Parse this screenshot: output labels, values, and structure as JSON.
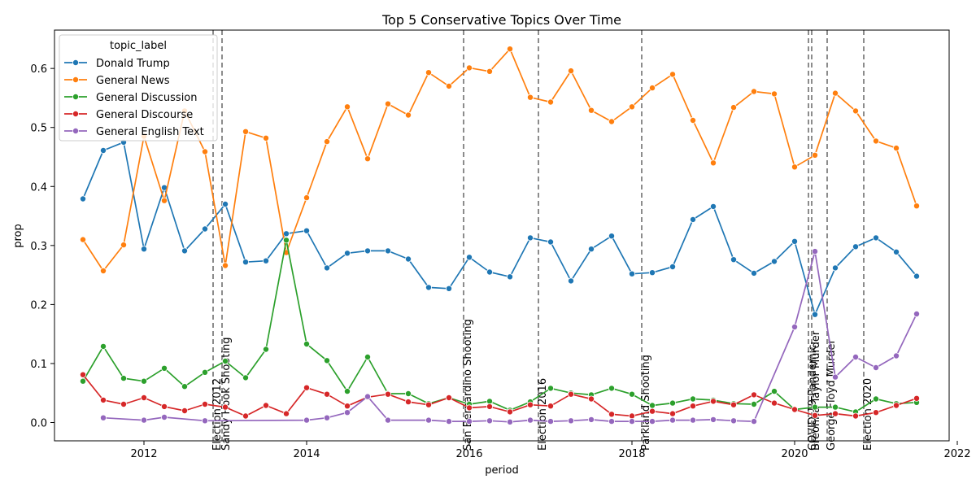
{
  "chart_data": {
    "type": "line",
    "title": "Top 5 Conservative Topics Over Time",
    "xlabel": "period",
    "ylabel": "prop",
    "xlim": [
      2010.9,
      2021.9
    ],
    "ylim": [
      -0.031,
      0.665
    ],
    "x_ticks": [
      2012,
      2014,
      2016,
      2018,
      2020,
      2022
    ],
    "y_ticks": [
      0.0,
      0.1,
      0.2,
      0.3,
      0.4,
      0.5,
      0.6
    ],
    "y_tick_labels": [
      "0.0",
      "0.1",
      "0.2",
      "0.3",
      "0.4",
      "0.5",
      "0.6"
    ],
    "grid": false,
    "legend": {
      "title": "topic_label",
      "position": "top-left"
    },
    "events": [
      {
        "x": 2012.85,
        "label": "Election 2012"
      },
      {
        "x": 2012.96,
        "label": "Sandy Hook Shooting"
      },
      {
        "x": 2015.93,
        "label": "San Bernardino Shooting"
      },
      {
        "x": 2016.85,
        "label": "Election 2016"
      },
      {
        "x": 2018.12,
        "label": "Parkland Shooting"
      },
      {
        "x": 2020.17,
        "label": "COVID-19 Pandemic"
      },
      {
        "x": 2020.21,
        "label": "Breonna Taylor Murder"
      },
      {
        "x": 2020.4,
        "label": "George Floyd Murder"
      },
      {
        "x": 2020.85,
        "label": "Election 2020"
      }
    ],
    "series": [
      {
        "name": "Donald Trump",
        "color": "#1f77b4",
        "points": [
          [
            2011.25,
            0.379
          ],
          [
            2011.5,
            0.461
          ],
          [
            2011.75,
            0.475
          ],
          [
            2012.0,
            0.294
          ],
          [
            2012.25,
            0.398
          ],
          [
            2012.5,
            0.291
          ],
          [
            2012.75,
            0.328
          ],
          [
            2013.0,
            0.37
          ],
          [
            2013.25,
            0.272
          ],
          [
            2013.5,
            0.274
          ],
          [
            2013.75,
            0.32
          ],
          [
            2014.0,
            0.325
          ],
          [
            2014.25,
            0.262
          ],
          [
            2014.5,
            0.287
          ],
          [
            2014.75,
            0.291
          ],
          [
            2015.0,
            0.291
          ],
          [
            2015.25,
            0.277
          ],
          [
            2015.5,
            0.229
          ],
          [
            2015.75,
            0.227
          ],
          [
            2016.0,
            0.28
          ],
          [
            2016.25,
            0.255
          ],
          [
            2016.5,
            0.247
          ],
          [
            2016.75,
            0.313
          ],
          [
            2017.0,
            0.306
          ],
          [
            2017.25,
            0.24
          ],
          [
            2017.5,
            0.294
          ],
          [
            2017.75,
            0.316
          ],
          [
            2018.0,
            0.252
          ],
          [
            2018.25,
            0.254
          ],
          [
            2018.5,
            0.264
          ],
          [
            2018.75,
            0.344
          ],
          [
            2019.0,
            0.366
          ],
          [
            2019.25,
            0.276
          ],
          [
            2019.5,
            0.253
          ],
          [
            2019.75,
            0.273
          ],
          [
            2020.0,
            0.307
          ],
          [
            2020.25,
            0.183
          ],
          [
            2020.5,
            0.262
          ],
          [
            2020.75,
            0.298
          ],
          [
            2021.0,
            0.313
          ],
          [
            2021.25,
            0.289
          ],
          [
            2021.5,
            0.248
          ]
        ]
      },
      {
        "name": "General News",
        "color": "#ff7f0e",
        "points": [
          [
            2011.25,
            0.31
          ],
          [
            2011.5,
            0.257
          ],
          [
            2011.75,
            0.301
          ],
          [
            2012.0,
            0.485
          ],
          [
            2012.25,
            0.376
          ],
          [
            2012.5,
            0.528
          ],
          [
            2012.75,
            0.459
          ],
          [
            2013.0,
            0.266
          ],
          [
            2013.25,
            0.493
          ],
          [
            2013.5,
            0.482
          ],
          [
            2013.75,
            0.288
          ],
          [
            2014.0,
            0.381
          ],
          [
            2014.25,
            0.476
          ],
          [
            2014.5,
            0.535
          ],
          [
            2014.75,
            0.447
          ],
          [
            2015.0,
            0.54
          ],
          [
            2015.25,
            0.521
          ],
          [
            2015.5,
            0.593
          ],
          [
            2015.75,
            0.57
          ],
          [
            2016.0,
            0.601
          ],
          [
            2016.25,
            0.595
          ],
          [
            2016.5,
            0.633
          ],
          [
            2016.75,
            0.551
          ],
          [
            2017.0,
            0.543
          ],
          [
            2017.25,
            0.596
          ],
          [
            2017.5,
            0.529
          ],
          [
            2017.75,
            0.51
          ],
          [
            2018.0,
            0.535
          ],
          [
            2018.25,
            0.567
          ],
          [
            2018.5,
            0.59
          ],
          [
            2018.75,
            0.512
          ],
          [
            2019.0,
            0.44
          ],
          [
            2019.25,
            0.534
          ],
          [
            2019.5,
            0.561
          ],
          [
            2019.75,
            0.557
          ],
          [
            2020.0,
            0.433
          ],
          [
            2020.25,
            0.453
          ],
          [
            2020.5,
            0.558
          ],
          [
            2020.75,
            0.528
          ],
          [
            2021.0,
            0.477
          ],
          [
            2021.25,
            0.465
          ],
          [
            2021.5,
            0.367
          ]
        ]
      },
      {
        "name": "General Discussion",
        "color": "#2ca02c",
        "points": [
          [
            2011.25,
            0.07
          ],
          [
            2011.5,
            0.129
          ],
          [
            2011.75,
            0.075
          ],
          [
            2012.0,
            0.07
          ],
          [
            2012.25,
            0.092
          ],
          [
            2012.5,
            0.061
          ],
          [
            2012.75,
            0.085
          ],
          [
            2013.0,
            0.104
          ],
          [
            2013.25,
            0.076
          ],
          [
            2013.5,
            0.124
          ],
          [
            2013.75,
            0.309
          ],
          [
            2014.0,
            0.133
          ],
          [
            2014.25,
            0.105
          ],
          [
            2014.5,
            0.053
          ],
          [
            2014.75,
            0.111
          ],
          [
            2015.0,
            0.049
          ],
          [
            2015.25,
            0.049
          ],
          [
            2015.5,
            0.032
          ],
          [
            2015.75,
            0.042
          ],
          [
            2016.0,
            0.031
          ],
          [
            2016.25,
            0.036
          ],
          [
            2016.5,
            0.021
          ],
          [
            2016.75,
            0.035
          ],
          [
            2017.0,
            0.058
          ],
          [
            2017.25,
            0.05
          ],
          [
            2017.5,
            0.047
          ],
          [
            2017.75,
            0.058
          ],
          [
            2018.0,
            0.048
          ],
          [
            2018.25,
            0.029
          ],
          [
            2018.5,
            0.033
          ],
          [
            2018.75,
            0.04
          ],
          [
            2019.0,
            0.038
          ],
          [
            2019.25,
            0.032
          ],
          [
            2019.5,
            0.031
          ],
          [
            2019.75,
            0.053
          ],
          [
            2020.0,
            0.022
          ],
          [
            2020.25,
            0.026
          ],
          [
            2020.5,
            0.026
          ],
          [
            2020.75,
            0.018
          ],
          [
            2021.0,
            0.04
          ],
          [
            2021.25,
            0.032
          ],
          [
            2021.5,
            0.034
          ]
        ]
      },
      {
        "name": "General Discourse",
        "color": "#d62728",
        "points": [
          [
            2011.25,
            0.081
          ],
          [
            2011.5,
            0.038
          ],
          [
            2011.75,
            0.031
          ],
          [
            2012.0,
            0.042
          ],
          [
            2012.25,
            0.027
          ],
          [
            2012.5,
            0.02
          ],
          [
            2012.75,
            0.031
          ],
          [
            2013.0,
            0.026
          ],
          [
            2013.25,
            0.011
          ],
          [
            2013.5,
            0.029
          ],
          [
            2013.75,
            0.015
          ],
          [
            2014.0,
            0.059
          ],
          [
            2014.25,
            0.048
          ],
          [
            2014.5,
            0.028
          ],
          [
            2014.75,
            0.043
          ],
          [
            2015.0,
            0.048
          ],
          [
            2015.25,
            0.035
          ],
          [
            2015.5,
            0.03
          ],
          [
            2015.75,
            0.042
          ],
          [
            2016.0,
            0.025
          ],
          [
            2016.25,
            0.027
          ],
          [
            2016.5,
            0.018
          ],
          [
            2016.75,
            0.03
          ],
          [
            2017.0,
            0.028
          ],
          [
            2017.25,
            0.048
          ],
          [
            2017.5,
            0.04
          ],
          [
            2017.75,
            0.014
          ],
          [
            2018.0,
            0.011
          ],
          [
            2018.25,
            0.019
          ],
          [
            2018.5,
            0.015
          ],
          [
            2018.75,
            0.028
          ],
          [
            2019.0,
            0.036
          ],
          [
            2019.25,
            0.03
          ],
          [
            2019.5,
            0.047
          ],
          [
            2019.75,
            0.033
          ],
          [
            2020.0,
            0.022
          ],
          [
            2020.25,
            0.012
          ],
          [
            2020.5,
            0.015
          ],
          [
            2020.75,
            0.011
          ],
          [
            2021.0,
            0.017
          ],
          [
            2021.25,
            0.029
          ],
          [
            2021.5,
            0.041
          ]
        ]
      },
      {
        "name": "General English Text",
        "color": "#9467bd",
        "points": [
          [
            2011.5,
            0.008
          ],
          [
            2012.0,
            0.004
          ],
          [
            2012.25,
            0.009
          ],
          [
            2012.75,
            0.003
          ],
          [
            2014.0,
            0.004
          ],
          [
            2014.25,
            0.008
          ],
          [
            2014.5,
            0.017
          ],
          [
            2014.75,
            0.044
          ],
          [
            2015.0,
            0.004
          ],
          [
            2015.5,
            0.004
          ],
          [
            2015.75,
            0.002
          ],
          [
            2016.0,
            0.002
          ],
          [
            2016.25,
            0.003
          ],
          [
            2016.5,
            0.001
          ],
          [
            2016.75,
            0.004
          ],
          [
            2017.0,
            0.002
          ],
          [
            2017.25,
            0.003
          ],
          [
            2017.5,
            0.005
          ],
          [
            2017.75,
            0.002
          ],
          [
            2018.0,
            0.002
          ],
          [
            2018.25,
            0.002
          ],
          [
            2018.5,
            0.004
          ],
          [
            2018.75,
            0.004
          ],
          [
            2019.0,
            0.005
          ],
          [
            2019.25,
            0.003
          ],
          [
            2019.5,
            0.002
          ],
          [
            2020.0,
            0.162
          ],
          [
            2020.25,
            0.29
          ],
          [
            2020.5,
            0.077
          ],
          [
            2020.75,
            0.111
          ],
          [
            2021.0,
            0.093
          ],
          [
            2021.25,
            0.113
          ],
          [
            2021.5,
            0.184
          ]
        ]
      }
    ]
  }
}
